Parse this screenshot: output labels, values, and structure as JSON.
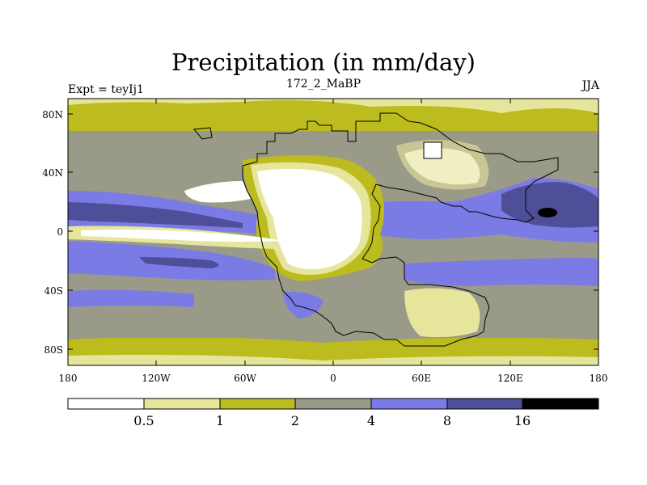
{
  "title": "Precipitation (in mm/day)",
  "left_label": "Expt = teyIj1",
  "center_label": "172_2_MaBP",
  "right_label": "JJA",
  "axes": {
    "lon_ticks": [
      "180",
      "120W",
      "60W",
      "0",
      "60E",
      "120E",
      "180"
    ],
    "lat_ticks": [
      "80N",
      "40N",
      "0",
      "40S",
      "80S"
    ]
  },
  "colorbar": {
    "colors": [
      "#ffffff",
      "#e6e59c",
      "#bcbc1f",
      "#9a9a88",
      "#7b7be6",
      "#4e4e99",
      "#000000"
    ],
    "labels": [
      "0.5",
      "1",
      "2",
      "4",
      "8",
      "16"
    ]
  },
  "palette": {
    "lt05": "#ffffff",
    "p05_1": "#e6e59c",
    "p1_2": "#bcbc1f",
    "p2_4": "#9a9a88",
    "p4_8": "#7b7be6",
    "p8_16": "#4e4e99",
    "gt16": "#000000"
  }
}
